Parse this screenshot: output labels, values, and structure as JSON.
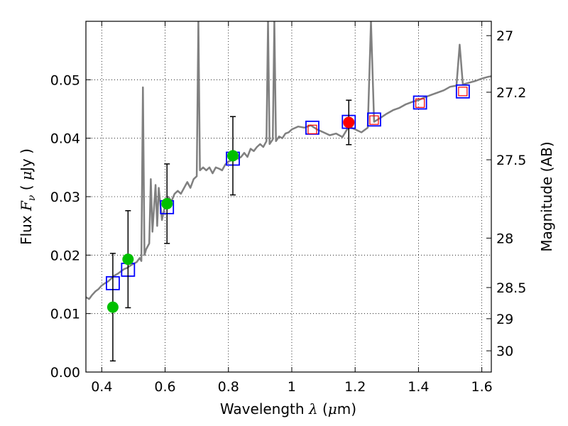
{
  "chart_data": {
    "type": "scatter",
    "title": "",
    "xlabel": "Wavelength  λ (μm)",
    "xlabel_parts": {
      "text": "Wavelength  ",
      "symbol": "λ",
      "unit_open": " (",
      "mu": "μ",
      "unit_rest": "m)"
    },
    "ylabel": "Flux  Fν  ( μJy )",
    "ylabel_parts": {
      "text": "Flux  ",
      "symbol": "F",
      "sub": "ν",
      "open": "  ( ",
      "mu": "μ",
      "unit": "Jy )"
    },
    "y2label": "Magnitude (AB)",
    "xlim": [
      0.35,
      1.63
    ],
    "ylim": [
      0.0,
      0.06
    ],
    "grid": true,
    "x_ticks": [
      {
        "value": 0.4,
        "label": "0.4"
      },
      {
        "value": 0.6,
        "label": "0.6"
      },
      {
        "value": 0.8,
        "label": "0.8"
      },
      {
        "value": 1.0,
        "label": "1"
      },
      {
        "value": 1.2,
        "label": "1.2"
      },
      {
        "value": 1.4,
        "label": "1.4"
      },
      {
        "value": 1.6,
        "label": "1.6"
      }
    ],
    "y_ticks": [
      {
        "value": 0.0,
        "label": "0.00"
      },
      {
        "value": 0.01,
        "label": "0.01"
      },
      {
        "value": 0.02,
        "label": "0.02"
      },
      {
        "value": 0.03,
        "label": "0.03"
      },
      {
        "value": 0.04,
        "label": "0.04"
      },
      {
        "value": 0.05,
        "label": "0.05"
      }
    ],
    "y2_ticks": [
      {
        "mag": 27,
        "label": "27"
      },
      {
        "mag": 27.2,
        "label": "27.2"
      },
      {
        "mag": 27.5,
        "label": "27.5"
      },
      {
        "mag": 28,
        "label": "28"
      },
      {
        "mag": 28.5,
        "label": "28.5"
      },
      {
        "mag": 29,
        "label": "29"
      },
      {
        "mag": 30,
        "label": "30"
      }
    ],
    "series": [
      {
        "name": "model_spectrum",
        "kind": "line",
        "color": "#808080",
        "points": [
          [
            0.35,
            0.0128
          ],
          [
            0.36,
            0.0125
          ],
          [
            0.37,
            0.0132
          ],
          [
            0.38,
            0.0138
          ],
          [
            0.39,
            0.0142
          ],
          [
            0.4,
            0.0148
          ],
          [
            0.41,
            0.0152
          ],
          [
            0.42,
            0.0155
          ],
          [
            0.43,
            0.016
          ],
          [
            0.44,
            0.0165
          ],
          [
            0.45,
            0.0168
          ],
          [
            0.46,
            0.0172
          ],
          [
            0.47,
            0.0176
          ],
          [
            0.48,
            0.0178
          ],
          [
            0.49,
            0.0182
          ],
          [
            0.5,
            0.0185
          ],
          [
            0.51,
            0.0188
          ],
          [
            0.52,
            0.0195
          ],
          [
            0.525,
            0.019
          ],
          [
            0.53,
            0.0487
          ],
          [
            0.535,
            0.02
          ],
          [
            0.54,
            0.021
          ],
          [
            0.55,
            0.022
          ],
          [
            0.555,
            0.033
          ],
          [
            0.56,
            0.024
          ],
          [
            0.57,
            0.032
          ],
          [
            0.575,
            0.025
          ],
          [
            0.58,
            0.0315
          ],
          [
            0.59,
            0.026
          ],
          [
            0.6,
            0.0285
          ],
          [
            0.61,
            0.03
          ],
          [
            0.62,
            0.0292
          ],
          [
            0.63,
            0.0305
          ],
          [
            0.64,
            0.031
          ],
          [
            0.65,
            0.0305
          ],
          [
            0.66,
            0.0315
          ],
          [
            0.67,
            0.0325
          ],
          [
            0.68,
            0.0315
          ],
          [
            0.69,
            0.033
          ],
          [
            0.7,
            0.0335
          ],
          [
            0.705,
            0.06
          ],
          [
            0.71,
            0.0345
          ],
          [
            0.72,
            0.035
          ],
          [
            0.73,
            0.0345
          ],
          [
            0.74,
            0.035
          ],
          [
            0.75,
            0.034
          ],
          [
            0.76,
            0.035
          ],
          [
            0.77,
            0.0348
          ],
          [
            0.78,
            0.0345
          ],
          [
            0.79,
            0.0355
          ],
          [
            0.8,
            0.036
          ],
          [
            0.81,
            0.0362
          ],
          [
            0.82,
            0.037
          ],
          [
            0.83,
            0.0365
          ],
          [
            0.84,
            0.0368
          ],
          [
            0.85,
            0.0375
          ],
          [
            0.86,
            0.0368
          ],
          [
            0.87,
            0.0382
          ],
          [
            0.88,
            0.0378
          ],
          [
            0.89,
            0.0385
          ],
          [
            0.9,
            0.039
          ],
          [
            0.91,
            0.0385
          ],
          [
            0.92,
            0.0395
          ],
          [
            0.925,
            0.06
          ],
          [
            0.93,
            0.039
          ],
          [
            0.94,
            0.0398
          ],
          [
            0.945,
            0.06
          ],
          [
            0.95,
            0.0395
          ],
          [
            0.96,
            0.0403
          ],
          [
            0.97,
            0.04
          ],
          [
            0.98,
            0.0408
          ],
          [
            0.99,
            0.041
          ],
          [
            1.0,
            0.0415
          ],
          [
            1.02,
            0.042
          ],
          [
            1.04,
            0.0418
          ],
          [
            1.06,
            0.0422
          ],
          [
            1.08,
            0.0415
          ],
          [
            1.1,
            0.041
          ],
          [
            1.12,
            0.0405
          ],
          [
            1.14,
            0.0408
          ],
          [
            1.16,
            0.0402
          ],
          [
            1.18,
            0.042
          ],
          [
            1.2,
            0.0415
          ],
          [
            1.22,
            0.041
          ],
          [
            1.24,
            0.0418
          ],
          [
            1.25,
            0.06
          ],
          [
            1.26,
            0.0428
          ],
          [
            1.28,
            0.0435
          ],
          [
            1.3,
            0.0442
          ],
          [
            1.32,
            0.0448
          ],
          [
            1.34,
            0.0452
          ],
          [
            1.36,
            0.0458
          ],
          [
            1.38,
            0.0462
          ],
          [
            1.4,
            0.0465
          ],
          [
            1.42,
            0.047
          ],
          [
            1.44,
            0.0474
          ],
          [
            1.46,
            0.0478
          ],
          [
            1.48,
            0.0482
          ],
          [
            1.5,
            0.0488
          ],
          [
            1.52,
            0.049
          ],
          [
            1.53,
            0.056
          ],
          [
            1.54,
            0.0492
          ],
          [
            1.56,
            0.0495
          ],
          [
            1.58,
            0.0498
          ],
          [
            1.6,
            0.0502
          ],
          [
            1.62,
            0.0505
          ],
          [
            1.63,
            0.0506
          ]
        ]
      },
      {
        "name": "model_band_flux",
        "kind": "blue_squares",
        "color": "#0000ff",
        "points": [
          [
            0.435,
            0.0152
          ],
          [
            0.483,
            0.0175
          ],
          [
            0.606,
            0.0282
          ],
          [
            0.814,
            0.0365
          ],
          [
            1.065,
            0.0418
          ],
          [
            1.18,
            0.0428
          ],
          [
            1.26,
            0.0432
          ],
          [
            1.405,
            0.0461
          ],
          [
            1.54,
            0.048
          ]
        ]
      },
      {
        "name": "upper_limit_markers",
        "kind": "red_squares",
        "color": "#ff0000",
        "points": [
          [
            1.065,
            0.0415
          ],
          [
            1.26,
            0.0431
          ],
          [
            1.405,
            0.046
          ],
          [
            1.54,
            0.048
          ]
        ]
      },
      {
        "name": "observed_hst",
        "kind": "green_points",
        "color": "#00c000",
        "points": [
          [
            0.435,
            0.0111,
            0.0092
          ],
          [
            0.483,
            0.0193,
            0.0083
          ],
          [
            0.606,
            0.0288,
            0.0068
          ],
          [
            0.814,
            0.037,
            0.0067
          ]
        ]
      },
      {
        "name": "observed_ir",
        "kind": "red_points",
        "color": "#ff0000",
        "points": [
          [
            1.18,
            0.0427,
            0.0038
          ]
        ]
      }
    ]
  }
}
